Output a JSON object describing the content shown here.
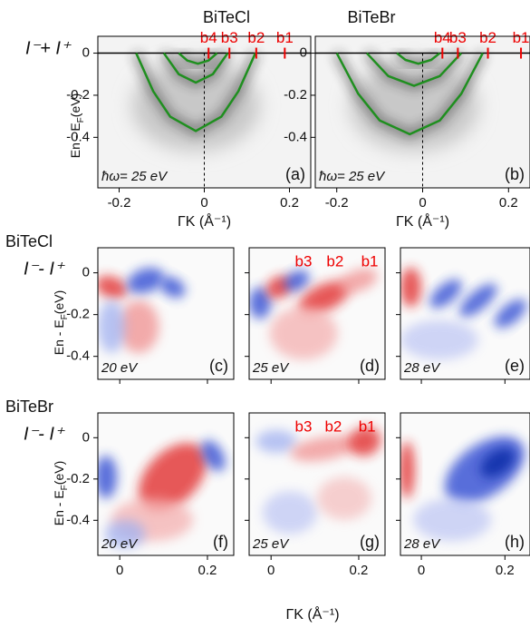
{
  "chart_data": [
    {
      "type": "line",
      "title": "BiTeCl",
      "ylabel_symbol": "I⁻+ I⁺",
      "ylabel": {
        "main": "En - E",
        "sub": "F",
        "unit": "(eV)"
      },
      "xlabel": "ΓK (Å⁻¹)",
      "photon_energy": "ħω= 25 eV",
      "panel_label": "(a)",
      "xlim": [
        -0.25,
        0.25
      ],
      "ylim": [
        -0.64,
        0.08
      ],
      "xticks": [
        -0.2,
        0,
        0.2
      ],
      "yticks": [
        0,
        -0.2,
        -0.4
      ],
      "band_labels": [
        {
          "label": "b4",
          "x": 0.01
        },
        {
          "label": "b3",
          "x": 0.059
        },
        {
          "label": "b2",
          "x": 0.122
        },
        {
          "label": "b1",
          "x": 0.189
        }
      ],
      "series": [
        {
          "color": "#1f8f1f",
          "x": [
            -0.16,
            -0.12,
            -0.08,
            -0.02,
            0.04,
            0.08,
            0.12
          ],
          "values": [
            0,
            -0.181,
            -0.302,
            -0.37,
            -0.302,
            -0.181,
            0
          ]
        },
        {
          "color": "#1f8f1f",
          "x": [
            -0.095,
            -0.06,
            -0.02,
            0.02,
            0.055
          ],
          "values": [
            0,
            -0.1,
            -0.14,
            -0.1,
            0
          ]
        },
        {
          "color": "#1f8f1f",
          "x": [
            -0.06,
            -0.04,
            -0.015,
            0.01,
            0.03
          ],
          "values": [
            0,
            -0.035,
            -0.05,
            -0.035,
            0
          ]
        }
      ]
    },
    {
      "type": "line",
      "title": "BiTeBr",
      "xlabel": "ΓK (Å⁻¹)",
      "photon_energy": "ħω= 25 eV",
      "panel_label": "(b)",
      "xlim": [
        -0.25,
        0.25
      ],
      "ylim": [
        -0.64,
        0.08
      ],
      "xticks": [
        -0.2,
        0,
        0.2
      ],
      "yticks": [
        0,
        -0.2,
        -0.4
      ],
      "band_labels": [
        {
          "label": "b4",
          "x": 0.046
        },
        {
          "label": "b3",
          "x": 0.082
        },
        {
          "label": "b2",
          "x": 0.152
        },
        {
          "label": "b1",
          "x": 0.229
        }
      ],
      "series": [
        {
          "color": "#1f8f1f",
          "x": [
            -0.2,
            -0.15,
            -0.1,
            -0.03,
            0.04,
            0.09,
            0.14
          ],
          "values": [
            0,
            -0.193,
            -0.32,
            -0.385,
            -0.32,
            -0.193,
            0
          ]
        },
        {
          "color": "#1f8f1f",
          "x": [
            -0.13,
            -0.08,
            -0.02,
            0.04,
            0.09
          ],
          "values": [
            0,
            -0.109,
            -0.155,
            -0.109,
            0
          ]
        },
        {
          "color": "#1f8f1f",
          "x": [
            -0.06,
            -0.04,
            -0.01,
            0.02,
            0.04
          ],
          "values": [
            0,
            -0.032,
            -0.05,
            -0.032,
            0
          ]
        }
      ]
    },
    {
      "type": "heatmap",
      "row_title": "BiTeCl",
      "ylabel_symbol": "I⁻- I⁺",
      "ylabel": {
        "main": "En - E",
        "sub": "F",
        "unit": "(eV)"
      },
      "photon_energy": "20 eV",
      "panel_label": "(c)",
      "xlim": [
        -0.05,
        0.26
      ],
      "ylim": [
        -0.51,
        0.12
      ],
      "xticks": [
        0,
        0.2
      ],
      "yticks": [
        0,
        -0.2,
        -0.4
      ]
    },
    {
      "type": "heatmap",
      "photon_energy": "25 eV",
      "panel_label": "(d)",
      "xlim": [
        -0.05,
        0.26
      ],
      "ylim": [
        -0.51,
        0.12
      ],
      "xticks": [
        0,
        0.2
      ],
      "yticks": [
        0,
        -0.2,
        -0.4
      ],
      "band_labels": [
        {
          "label": "b3",
          "x": 0.074
        },
        {
          "label": "b2",
          "x": 0.146
        },
        {
          "label": "b1",
          "x": 0.225
        }
      ]
    },
    {
      "type": "heatmap",
      "photon_energy": "28 eV",
      "panel_label": "(e)",
      "xlim": [
        -0.05,
        0.26
      ],
      "ylim": [
        -0.51,
        0.12
      ],
      "xticks": [
        0,
        0.2
      ],
      "yticks": [
        0,
        -0.2,
        -0.4
      ]
    },
    {
      "type": "heatmap",
      "row_title": "BiTeBr",
      "ylabel_symbol": "I⁻- I⁺",
      "ylabel": {
        "main": "En - E",
        "sub": "F",
        "unit": "(eV)"
      },
      "photon_energy": "20 eV",
      "panel_label": "(f)",
      "xlim": [
        -0.05,
        0.26
      ],
      "ylim": [
        -0.57,
        0.12
      ],
      "xticks": [
        0,
        0.2
      ],
      "yticks": [
        0,
        -0.2,
        -0.4
      ]
    },
    {
      "type": "heatmap",
      "photon_energy": "25 eV",
      "panel_label": "(g)",
      "xlabel": "ΓK (Å⁻¹)",
      "xlim": [
        -0.05,
        0.26
      ],
      "ylim": [
        -0.57,
        0.12
      ],
      "xticks": [
        0,
        0.2
      ],
      "yticks": [
        0,
        -0.2,
        -0.4
      ],
      "band_labels": [
        {
          "label": "b3",
          "x": 0.074
        },
        {
          "label": "b2",
          "x": 0.142
        },
        {
          "label": "b1",
          "x": 0.219
        }
      ]
    },
    {
      "type": "heatmap",
      "photon_energy": "28 eV",
      "panel_label": "(h)",
      "xlim": [
        -0.05,
        0.26
      ],
      "ylim": [
        -0.57,
        0.12
      ],
      "xticks": [
        0,
        0.2
      ],
      "yticks": [
        0,
        -0.2,
        -0.4
      ]
    }
  ]
}
